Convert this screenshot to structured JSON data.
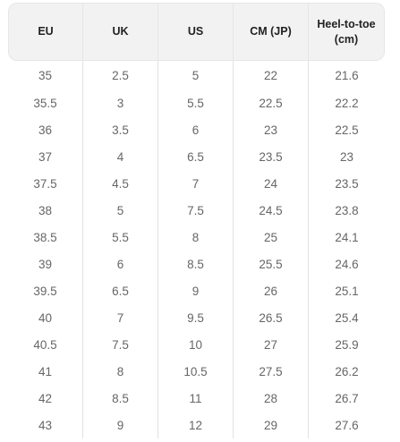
{
  "table": {
    "headers": [
      "EU",
      "UK",
      "US",
      "CM (JP)",
      "Heel-to-toe (cm)"
    ],
    "rows": [
      [
        "35",
        "2.5",
        "5",
        "22",
        "21.6"
      ],
      [
        "35.5",
        "3",
        "5.5",
        "22.5",
        "22.2"
      ],
      [
        "36",
        "3.5",
        "6",
        "23",
        "22.5"
      ],
      [
        "37",
        "4",
        "6.5",
        "23.5",
        "23"
      ],
      [
        "37.5",
        "4.5",
        "7",
        "24",
        "23.5"
      ],
      [
        "38",
        "5",
        "7.5",
        "24.5",
        "23.8"
      ],
      [
        "38.5",
        "5.5",
        "8",
        "25",
        "24.1"
      ],
      [
        "39",
        "6",
        "8.5",
        "25.5",
        "24.6"
      ],
      [
        "39.5",
        "6.5",
        "9",
        "26",
        "25.1"
      ],
      [
        "40",
        "7",
        "9.5",
        "26.5",
        "25.4"
      ],
      [
        "40.5",
        "7.5",
        "10",
        "27",
        "25.9"
      ],
      [
        "41",
        "8",
        "10.5",
        "27.5",
        "26.2"
      ],
      [
        "42",
        "8.5",
        "11",
        "28",
        "26.7"
      ],
      [
        "43",
        "9",
        "12",
        "29",
        "27.6"
      ]
    ]
  },
  "colors": {
    "header_bg": "#f2f2f2",
    "header_text": "#222222",
    "cell_text": "#666666",
    "divider": "#e2e2e2"
  }
}
